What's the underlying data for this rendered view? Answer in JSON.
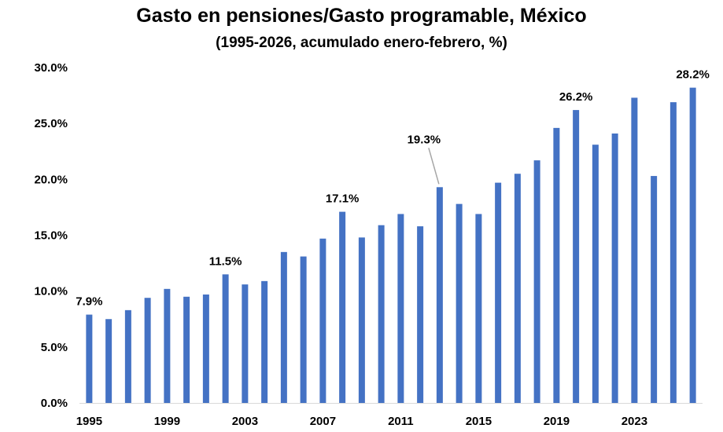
{
  "chart_data": {
    "type": "bar",
    "title": "Gasto en pensiones/Gasto programable, México",
    "subtitle": "(1995-2026, acumulado enero-febrero, %)",
    "xlabel": "",
    "ylabel": "",
    "ylim": [
      0,
      30
    ],
    "ytick_values": [
      0,
      5,
      10,
      15,
      20,
      25,
      30
    ],
    "ytick_labels": [
      "0.0%",
      "5.0%",
      "10.0%",
      "15.0%",
      "20.0%",
      "25.0%",
      "30.0%"
    ],
    "xtick_labels": [
      "1995",
      "1999",
      "2003",
      "2007",
      "2011",
      "2015",
      "2019",
      "2023"
    ],
    "categories": [
      "1995",
      "1996",
      "1997",
      "1998",
      "1999",
      "2000",
      "2001",
      "2002",
      "2003",
      "2004",
      "2005",
      "2006",
      "2007",
      "2008",
      "2009",
      "2010",
      "2011",
      "2012",
      "2013",
      "2014",
      "2015",
      "2016",
      "2017",
      "2018",
      "2019",
      "2020",
      "2021",
      "2022",
      "2023",
      "2024",
      "2025",
      "2026"
    ],
    "values": [
      7.9,
      7.5,
      8.3,
      9.4,
      10.2,
      9.5,
      9.7,
      11.5,
      10.6,
      10.9,
      13.5,
      13.1,
      14.7,
      17.1,
      14.8,
      15.9,
      16.9,
      15.8,
      19.3,
      17.8,
      16.9,
      19.7,
      20.5,
      21.7,
      24.6,
      26.2,
      23.1,
      24.1,
      27.3,
      20.3,
      26.9,
      28.2
    ],
    "grid": false,
    "bar_color": "#4472C4",
    "annotations": [
      {
        "index": 0,
        "text": "7.9%"
      },
      {
        "index": 7,
        "text": "11.5%"
      },
      {
        "index": 13,
        "text": "17.1%"
      },
      {
        "index": 18,
        "text": "19.3%",
        "leader_line": true
      },
      {
        "index": 25,
        "text": "26.2%"
      },
      {
        "index": 31,
        "text": "28.2%"
      }
    ]
  }
}
